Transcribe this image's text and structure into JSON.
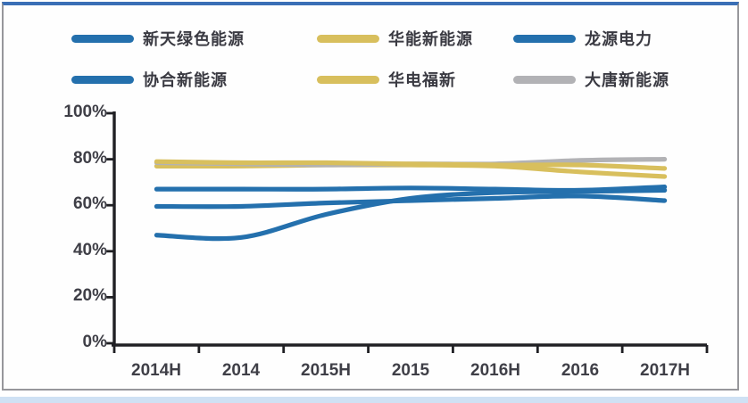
{
  "colors": {
    "blue": "#2470ad",
    "gold": "#d8bf5d",
    "gray": "#b2b2b5",
    "axis": "#202024",
    "frame_top_accent": "#3a6fb6",
    "bottom_strip": "#cfe1f4"
  },
  "legend": {
    "items": [
      {
        "label": "新天绿色能源",
        "color": "blue"
      },
      {
        "label": "华能新能源",
        "color": "gold"
      },
      {
        "label": "龙源电力",
        "color": "blue"
      },
      {
        "label": "协合新能源",
        "color": "blue"
      },
      {
        "label": "华电福新",
        "color": "gold"
      },
      {
        "label": "大唐新能源",
        "color": "gray"
      }
    ]
  },
  "chart_data": {
    "type": "line",
    "categories": [
      "2014H",
      "2014",
      "2015H",
      "2015",
      "2016H",
      "2016",
      "2017H"
    ],
    "y_ticks": [
      "100%",
      "80%",
      "60%",
      "40%",
      "20%",
      "0%"
    ],
    "ylim": [
      0,
      100
    ],
    "grid": false,
    "legend_position": "top",
    "series": [
      {
        "name": "新天绿色能源",
        "color": "blue",
        "values": [
          47,
          46,
          56,
          63,
          65.5,
          66,
          66.5
        ]
      },
      {
        "name": "华能新能源",
        "color": "gold",
        "values": [
          79,
          78.5,
          78.5,
          78,
          77.5,
          77.5,
          76
        ]
      },
      {
        "name": "龙源电力",
        "color": "blue",
        "values": [
          67,
          67,
          67,
          67.5,
          67,
          66.5,
          68
        ]
      },
      {
        "name": "协合新能源",
        "color": "blue",
        "values": [
          59.5,
          59.5,
          61,
          62,
          63,
          64,
          62
        ]
      },
      {
        "name": "华电福新",
        "color": "gold",
        "values": [
          77,
          77,
          77.5,
          77.5,
          77,
          74.5,
          72.5
        ]
      },
      {
        "name": "大唐新能源",
        "color": "gray",
        "values": [
          78.5,
          78,
          77.5,
          78,
          78,
          79.5,
          80
        ]
      }
    ],
    "draw_order": [
      4,
      5,
      1,
      0,
      3,
      2
    ]
  }
}
